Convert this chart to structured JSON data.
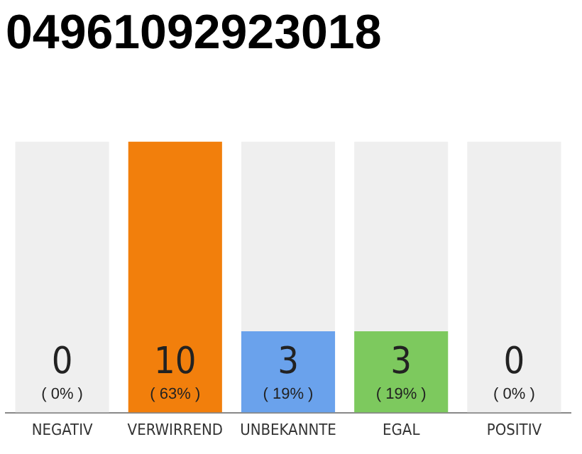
{
  "chart_data": {
    "type": "bar",
    "title": "04961092923018",
    "categories": [
      "NEGATIV",
      "VERWIRREND",
      "UNBEKANNTE",
      "EGAL",
      "POSITIV"
    ],
    "stacked": true,
    "series": [
      {
        "colors": [
          "#efefef",
          "#f27f0c",
          "#6aa2ec",
          "#7dc95e",
          "#efefef"
        ],
        "values": [
          0,
          10,
          3,
          3,
          0
        ],
        "value_labels": [
          null,
          "10\n( 63% )",
          "3\n( 19% )",
          "3\n( 19% )",
          null
        ]
      },
      {
        "color": "#efefef",
        "values": [
          10,
          0,
          7,
          7,
          10
        ]
      }
    ],
    "annotations": [
      {
        "text": "0\n( 0% )",
        "x": "NEGATIV",
        "y": 0
      },
      {
        "text": "0\n( 0% )",
        "x": "POSITIV",
        "y": 0
      }
    ],
    "grid": false,
    "legend": false,
    "tick_labels": "x"
  }
}
